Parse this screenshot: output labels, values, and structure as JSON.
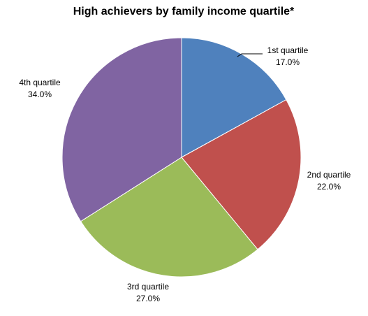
{
  "chart_data": {
    "type": "pie",
    "title": "High achievers by family income quartile*",
    "categories": [
      "1st quartile",
      "2nd quartile",
      "3rd quartile",
      "4th quartile"
    ],
    "values": [
      17.0,
      22.0,
      27.0,
      34.0
    ],
    "value_labels": [
      "17.0%",
      "22.0%",
      "27.0%",
      "34.0%"
    ],
    "colors": [
      "#4F81BD",
      "#C0504D",
      "#9BBB59",
      "#8064A2"
    ],
    "start_angle": "12 o'clock",
    "direction": "clockwise",
    "legend": "none"
  }
}
